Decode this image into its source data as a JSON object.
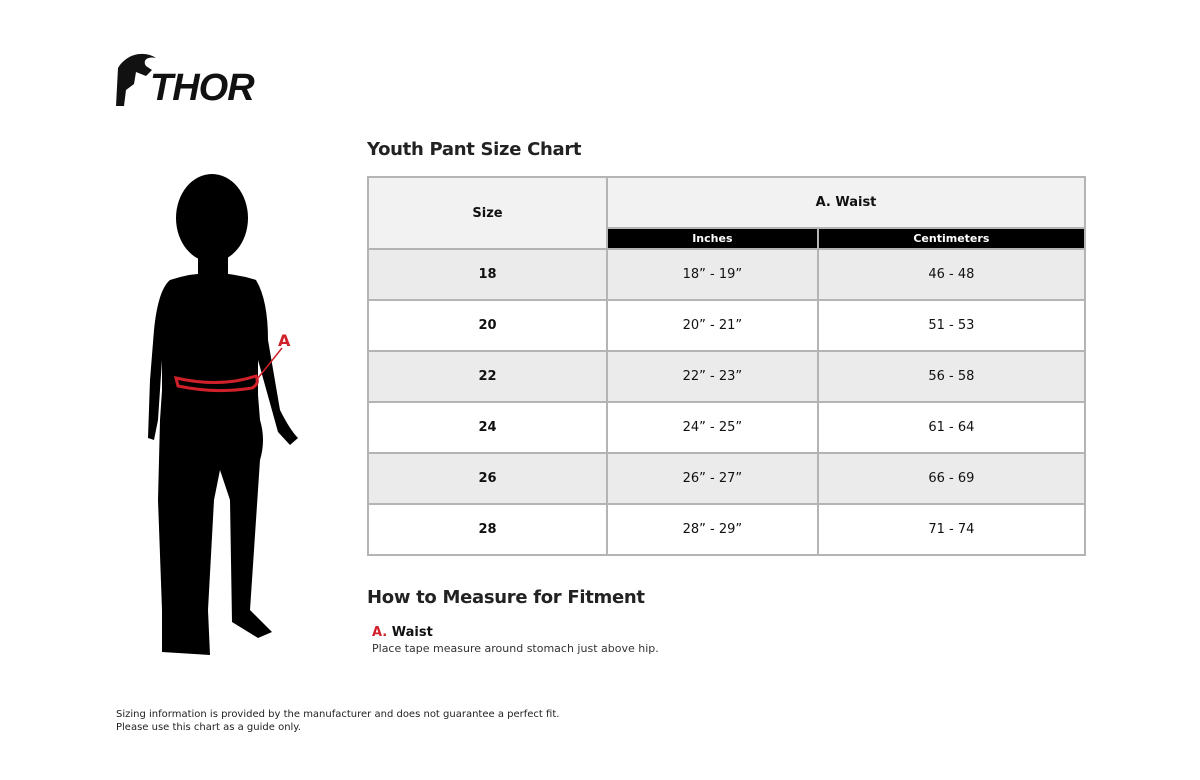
{
  "brand": {
    "logo_text": "THOR"
  },
  "chart": {
    "title": "Youth Pant Size Chart",
    "header": {
      "size": "Size",
      "group": "A. Waist",
      "inches": "Inches",
      "centimeters": "Centimeters"
    },
    "rows": [
      {
        "size": "18",
        "inches": "18” - 19”",
        "cm": "46 - 48"
      },
      {
        "size": "20",
        "inches": "20” - 21”",
        "cm": "51 - 53"
      },
      {
        "size": "22",
        "inches": "22” - 23”",
        "cm": "56 - 58"
      },
      {
        "size": "24",
        "inches": "24” - 25”",
        "cm": "61 - 64"
      },
      {
        "size": "26",
        "inches": "26” - 27”",
        "cm": "66 - 69"
      },
      {
        "size": "28",
        "inches": "28” - 29”",
        "cm": "71 - 74"
      }
    ]
  },
  "figure": {
    "marker": "A",
    "marker_color": "#d0202a"
  },
  "measure": {
    "title": "How to Measure for Fitment",
    "items": [
      {
        "letter": "A.",
        "name": "Waist",
        "description": "Place tape measure around stomach just above hip."
      }
    ]
  },
  "disclaimer": {
    "line1": "Sizing information is provided by the manufacturer and does not guarantee a perfect fit.",
    "line2": "Please use this chart as a guide only."
  }
}
